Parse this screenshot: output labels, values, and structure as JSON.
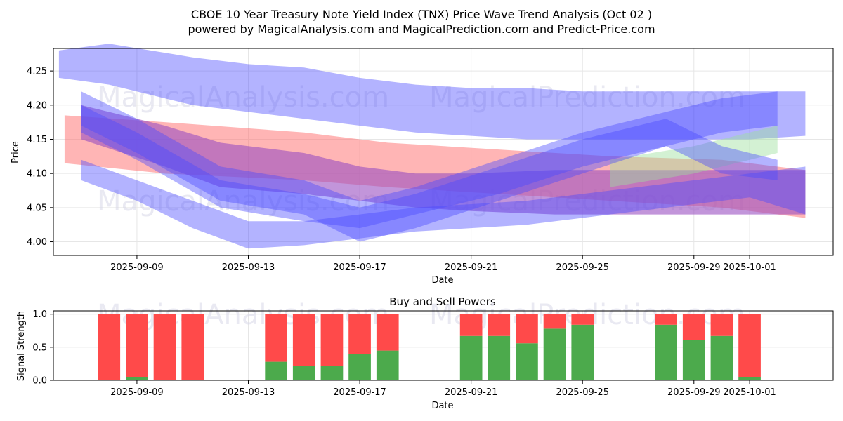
{
  "colors": {
    "band_blue": "#4a4aff",
    "band_red": "#ff6b6b",
    "band_purple": "#9a4fc2",
    "band_green": "#9ee09e",
    "buy": "#4caa4c",
    "sell": "#ff4a4a",
    "watermark": "#d7d7e8"
  },
  "title_line1": "CBOE 10 Year Treasury Note Yield Index (TNX) Price Wave Trend Analysis (Oct 02 )",
  "title_line2": "powered by MagicalAnalysis.com and MagicalPrediction.com and Predict-Price.com",
  "watermarks": [
    "MagicalAnalysis.com",
    "MagicalPrediction.com"
  ],
  "chart_data": [
    {
      "type": "area",
      "title": "Price Wave Trend Analysis",
      "xlabel": "Date",
      "ylabel": "Price",
      "xlim": [
        "2025-09-06",
        "2025-10-04"
      ],
      "ylim": [
        3.98,
        4.283
      ],
      "x_ticks": [
        "2025-09-09",
        "2025-09-13",
        "2025-09-17",
        "2025-09-21",
        "2025-09-25",
        "2025-09-29",
        "2025-10-01"
      ],
      "y_ticks": [
        "4.00",
        "4.05",
        "4.10",
        "4.15",
        "4.20",
        "4.25"
      ],
      "grid": true,
      "bands": [
        {
          "color": "blue",
          "x": [
            "2025-09-06.2",
            "2025-09-08",
            "2025-09-11",
            "2025-09-13",
            "2025-09-15",
            "2025-09-17",
            "2025-09-19",
            "2025-09-21",
            "2025-09-23",
            "2025-09-25",
            "2025-09-27",
            "2025-09-29",
            "2025-10-01",
            "2025-10-03"
          ],
          "upper": [
            4.28,
            4.29,
            4.27,
            4.26,
            4.255,
            4.24,
            4.23,
            4.225,
            4.225,
            4.22,
            4.22,
            4.22,
            4.22,
            4.22
          ],
          "lower": [
            4.24,
            4.23,
            4.2,
            4.19,
            4.18,
            4.17,
            4.16,
            4.155,
            4.15,
            4.15,
            4.15,
            4.15,
            4.15,
            4.155
          ]
        },
        {
          "color": "red",
          "x": [
            "2025-09-06.4",
            "2025-09-10",
            "2025-09-15",
            "2025-09-18",
            "2025-09-22",
            "2025-09-26",
            "2025-09-30",
            "2025-10-03"
          ],
          "upper": [
            4.185,
            4.175,
            4.16,
            4.145,
            4.135,
            4.125,
            4.12,
            4.105
          ],
          "lower": [
            4.115,
            4.1,
            4.09,
            4.08,
            4.07,
            4.06,
            4.05,
            4.035
          ]
        },
        {
          "color": "purple",
          "x": [
            "2025-09-07",
            "2025-09-10",
            "2025-09-12",
            "2025-09-15",
            "2025-09-17",
            "2025-09-19",
            "2025-09-21",
            "2025-09-24",
            "2025-09-26",
            "2025-09-29",
            "2025-10-01",
            "2025-10-03"
          ],
          "upper": [
            4.2,
            4.17,
            4.145,
            4.13,
            4.11,
            4.1,
            4.1,
            4.105,
            4.105,
            4.105,
            4.105,
            4.105
          ],
          "lower": [
            4.15,
            4.11,
            4.08,
            4.07,
            4.06,
            4.05,
            4.045,
            4.04,
            4.04,
            4.04,
            4.04,
            4.04
          ]
        },
        {
          "color": "green",
          "x": [
            "2025-09-26",
            "2025-09-29",
            "2025-10-01",
            "2025-10-02"
          ],
          "upper": [
            4.12,
            4.14,
            4.16,
            4.17
          ],
          "lower": [
            4.08,
            4.1,
            4.12,
            4.13
          ]
        },
        {
          "color": "blue",
          "x": [
            "2025-09-07",
            "2025-09-09",
            "2025-09-11",
            "2025-09-13",
            "2025-09-15",
            "2025-09-17",
            "2025-09-19",
            "2025-09-21",
            "2025-09-23",
            "2025-09-25",
            "2025-09-27",
            "2025-09-29",
            "2025-10-01",
            "2025-10-03"
          ],
          "upper": [
            4.12,
            4.09,
            4.06,
            4.03,
            4.03,
            4.04,
            4.05,
            4.055,
            4.06,
            4.07,
            4.08,
            4.09,
            4.1,
            4.11
          ],
          "lower": [
            4.09,
            4.06,
            4.02,
            3.99,
            3.995,
            4.005,
            4.015,
            4.02,
            4.025,
            4.035,
            4.045,
            4.055,
            4.065,
            4.04
          ]
        },
        {
          "color": "blue",
          "x": [
            "2025-09-07",
            "2025-09-09",
            "2025-09-12",
            "2025-09-15",
            "2025-09-17",
            "2025-09-19",
            "2025-09-22",
            "2025-09-25",
            "2025-09-28",
            "2025-09-30",
            "2025-10-02"
          ],
          "upper": [
            4.22,
            4.18,
            4.11,
            4.09,
            4.06,
            4.08,
            4.12,
            4.16,
            4.19,
            4.21,
            4.22
          ],
          "lower": [
            4.17,
            4.13,
            4.06,
            4.04,
            4.0,
            4.02,
            4.06,
            4.1,
            4.14,
            4.16,
            4.17
          ]
        },
        {
          "color": "blue",
          "x": [
            "2025-09-07",
            "2025-09-09",
            "2025-09-12",
            "2025-09-15",
            "2025-09-17",
            "2025-09-19",
            "2025-09-22",
            "2025-09-25",
            "2025-09-28",
            "2025-09-30",
            "2025-10-02"
          ],
          "upper": [
            4.2,
            4.16,
            4.09,
            4.07,
            4.05,
            4.07,
            4.11,
            4.15,
            4.18,
            4.14,
            4.12
          ],
          "lower": [
            4.16,
            4.12,
            4.05,
            4.03,
            4.02,
            4.04,
            4.07,
            4.11,
            4.14,
            4.1,
            4.09
          ]
        }
      ]
    },
    {
      "type": "bar",
      "title": "Buy and Sell Powers",
      "xlabel": "Date",
      "ylabel": "Signal Strength",
      "ylim": [
        0,
        1.05
      ],
      "y_ticks": [
        "0.0",
        "0.5",
        "1.0"
      ],
      "x_ticks": [
        "2025-09-09",
        "2025-09-13",
        "2025-09-17",
        "2025-09-21",
        "2025-09-25",
        "2025-09-29",
        "2025-10-01"
      ],
      "dates": [
        "2025-09-08",
        "2025-09-09",
        "2025-09-10",
        "2025-09-11",
        "2025-09-14",
        "2025-09-15",
        "2025-09-16",
        "2025-09-17",
        "2025-09-18",
        "2025-09-21",
        "2025-09-22",
        "2025-09-23",
        "2025-09-24",
        "2025-09-25",
        "2025-09-28",
        "2025-09-29",
        "2025-09-30",
        "2025-10-01"
      ],
      "buy": [
        0.0,
        0.05,
        0.0,
        0.0,
        0.28,
        0.22,
        0.22,
        0.4,
        0.45,
        0.67,
        0.67,
        0.56,
        0.78,
        0.84,
        0.84,
        0.61,
        0.67,
        0.05
      ],
      "sell": [
        1.0,
        0.95,
        1.0,
        1.0,
        0.72,
        0.78,
        0.78,
        0.6,
        0.55,
        0.33,
        0.33,
        0.44,
        0.22,
        0.16,
        0.16,
        0.39,
        0.33,
        0.95
      ]
    }
  ]
}
